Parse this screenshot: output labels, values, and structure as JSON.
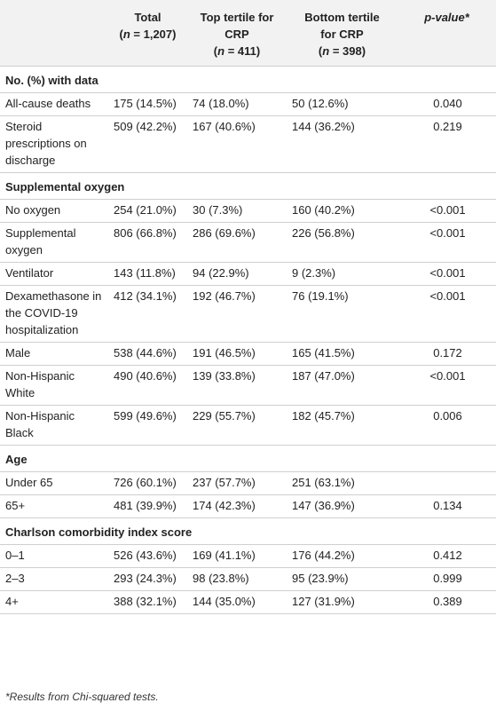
{
  "headers": {
    "col0": "",
    "total_line1": "Total",
    "total_line2": "(n = 1,207)",
    "top_line1": "Top tertile for",
    "top_line2": "CRP",
    "top_line3": "(n = 411)",
    "bottom_line1": "Bottom tertile",
    "bottom_line2": "for CRP",
    "bottom_line3": "(n = 398)",
    "pvalue": "p-value*"
  },
  "rows": [
    {
      "type": "section",
      "label": "No. (%) with data"
    },
    {
      "type": "data",
      "label": "All-cause deaths",
      "total": "175 (14.5%)",
      "top": "74 (18.0%)",
      "bottom": "50 (12.6%)",
      "p": "0.040"
    },
    {
      "type": "data",
      "label": "Steroid prescriptions on discharge",
      "total": "509 (42.2%)",
      "top": "167 (40.6%)",
      "bottom": "144 (36.2%)",
      "p": "0.219"
    },
    {
      "type": "section",
      "label": "Supplemental oxygen"
    },
    {
      "type": "data",
      "label": "No oxygen",
      "total": "254 (21.0%)",
      "top": "30 (7.3%)",
      "bottom": "160 (40.2%)",
      "p": "<0.001"
    },
    {
      "type": "data",
      "label": "Supplemental oxygen",
      "total": "806 (66.8%)",
      "top": "286 (69.6%)",
      "bottom": "226 (56.8%)",
      "p": "<0.001"
    },
    {
      "type": "data",
      "label": "Ventilator",
      "total": "143 (11.8%)",
      "top": "94 (22.9%)",
      "bottom": "9 (2.3%)",
      "p": "<0.001"
    },
    {
      "type": "data",
      "label": "Dexamethasone in the COVID-19 hospitalization",
      "total": "412 (34.1%)",
      "top": "192 (46.7%)",
      "bottom": "76 (19.1%)",
      "p": "<0.001"
    },
    {
      "type": "data",
      "label": "Male",
      "total": "538 (44.6%)",
      "top": "191 (46.5%)",
      "bottom": "165 (41.5%)",
      "p": "0.172"
    },
    {
      "type": "data",
      "label": "Non-Hispanic White",
      "total": "490 (40.6%)",
      "top": "139 (33.8%)",
      "bottom": "187 (47.0%)",
      "p": "<0.001"
    },
    {
      "type": "data",
      "label": "Non-Hispanic Black",
      "total": "599 (49.6%)",
      "top": "229 (55.7%)",
      "bottom": "182 (45.7%)",
      "p": "0.006"
    },
    {
      "type": "section",
      "label": "Age"
    },
    {
      "type": "data",
      "label": "Under 65",
      "total": "726 (60.1%)",
      "top": "237 (57.7%)",
      "bottom": "251 (63.1%)",
      "p": ""
    },
    {
      "type": "data",
      "label": "65+",
      "total": "481 (39.9%)",
      "top": "174 (42.3%)",
      "bottom": "147 (36.9%)",
      "p": "0.134"
    },
    {
      "type": "section",
      "label": "Charlson comorbidity index score"
    },
    {
      "type": "data",
      "label": "0–1",
      "total": "526 (43.6%)",
      "top": "169 (41.1%)",
      "bottom": "176 (44.2%)",
      "p": "0.412"
    },
    {
      "type": "data",
      "label": "2–3",
      "total": "293 (24.3%)",
      "top": "98 (23.8%)",
      "bottom": "95 (23.9%)",
      "p": "0.999"
    },
    {
      "type": "data",
      "label": "4+",
      "total": "388 (32.1%)",
      "top": "144 (35.0%)",
      "bottom": "127 (31.9%)",
      "p": "0.389"
    }
  ],
  "footnote": "*Results from Chi-squared tests."
}
